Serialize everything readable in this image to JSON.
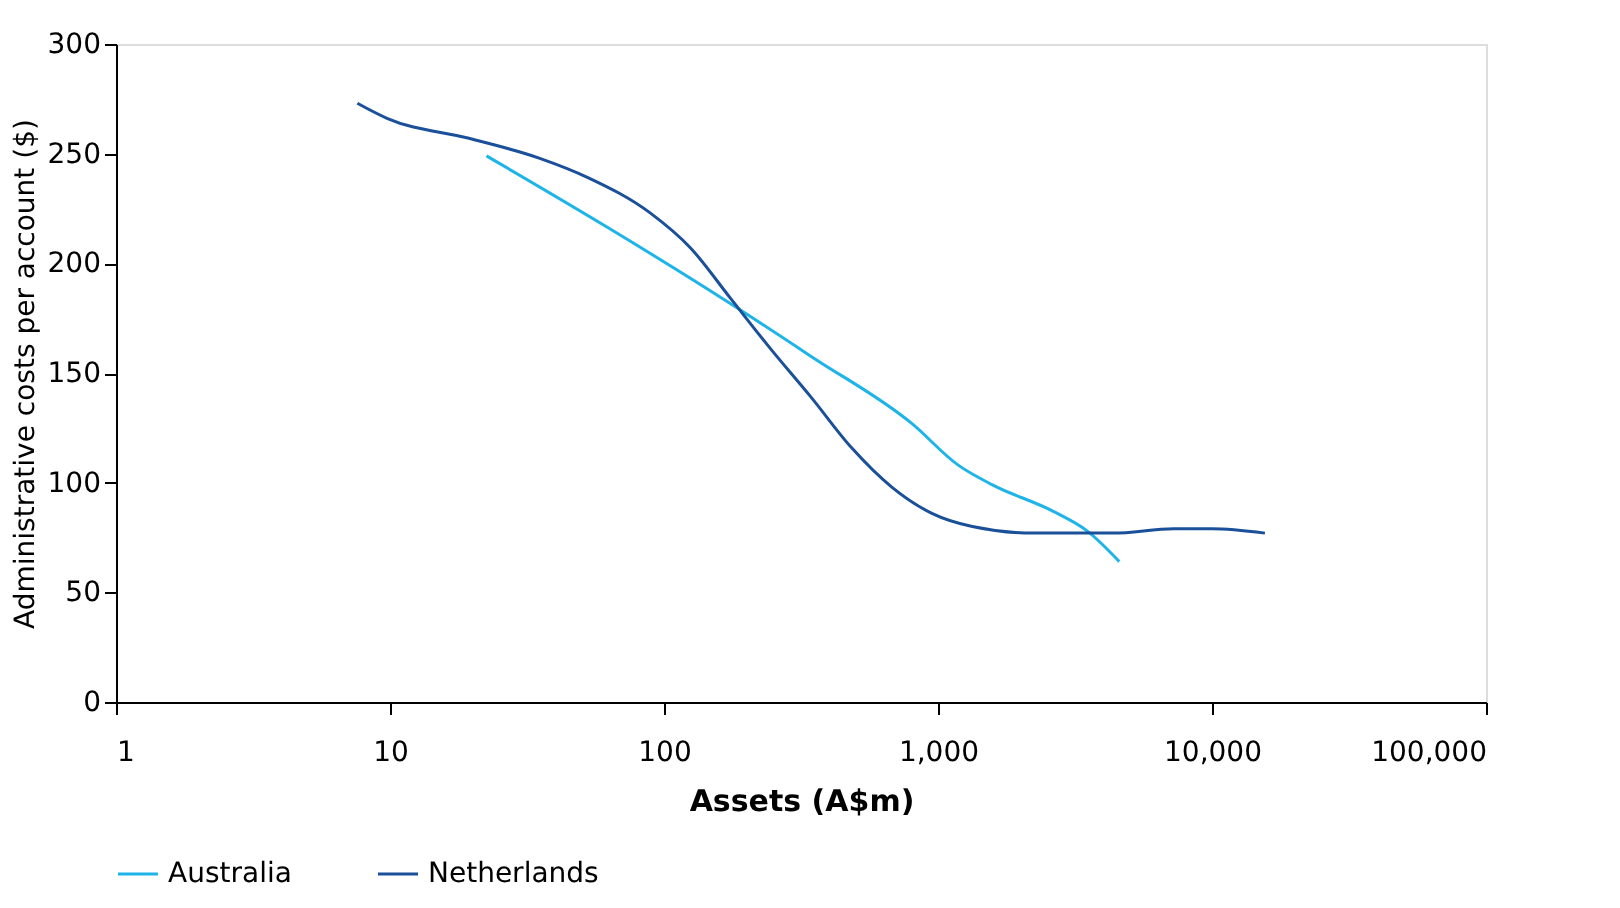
{
  "chart_data": {
    "type": "line",
    "xlabel": "Assets (A$m)",
    "ylabel": "Administrative costs per account ($)",
    "log": "x",
    "xlim": [
      1,
      100000
    ],
    "xticks": [
      1,
      10,
      100,
      {
        "value": 1000,
        "label": "1,000"
      },
      {
        "value": 10000,
        "label": "10,000"
      },
      {
        "value": 100000,
        "label": "100,000"
      }
    ],
    "ylim": [
      0,
      300
    ],
    "yticks": [
      0,
      50,
      100,
      150,
      200,
      250,
      300
    ],
    "grid": false,
    "legend": "bottom",
    "marker": "none",
    "line_style": "solid",
    "series": [
      {
        "name": "Australia",
        "color": "#1fb4e8",
        "x": [
          22.5,
          63,
          178,
          350,
          802,
          1185,
          1580,
          2625,
          3500,
          4590
        ],
        "values": [
          249,
          216,
          181,
          157,
          127,
          108,
          99,
          87,
          78,
          64
        ]
      },
      {
        "name": "Netherlands",
        "color": "#1a4f9a",
        "x": [
          7.6,
          9.8,
          19.4,
          35,
          53,
          89,
          125,
          175,
          245,
          344,
          483,
          678,
          950,
          1334,
          2218,
          4360,
          7250,
          10000,
          15600
        ],
        "values": [
          273,
          266,
          257,
          248,
          239,
          223,
          207,
          184,
          161,
          139,
          116,
          98,
          86,
          80,
          77,
          77,
          79,
          79,
          77
        ]
      }
    ]
  }
}
